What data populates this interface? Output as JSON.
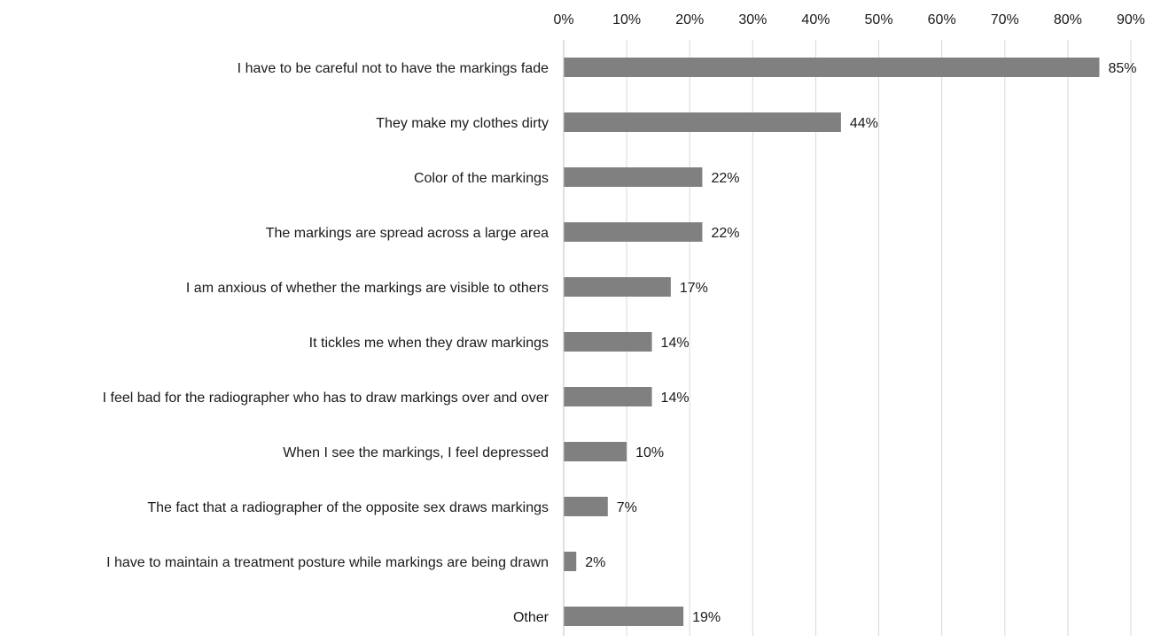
{
  "chart_data": {
    "type": "bar",
    "orientation": "horizontal",
    "categories": [
      "I have to be careful not to have the markings fade",
      "They make my clothes dirty",
      "Color of the markings ",
      "The markings are spread across a large area",
      "I am anxious of whether the markings are visible to others",
      "It tickles me when they draw markings",
      "I feel bad for the radiographer who has to draw markings over and over",
      "When I see the markings, I feel depressed",
      "The fact that a radiographer of the opposite sex draws markings",
      "I have to maintain a treatment posture while markings are being drawn",
      "Other"
    ],
    "values": [
      85,
      44,
      22,
      22,
      17,
      14,
      14,
      10,
      7,
      2,
      19
    ],
    "data_labels": [
      "85%",
      "44%",
      "22%",
      "22%",
      "17%",
      "14%",
      "14%",
      "10%",
      "7%",
      "2%",
      "19%"
    ],
    "x_ticks": [
      0,
      10,
      20,
      30,
      40,
      50,
      60,
      70,
      80,
      90
    ],
    "x_tick_labels": [
      "0%",
      "10%",
      "20%",
      "30%",
      "40%",
      "50%",
      "60%",
      "70%",
      "80%",
      "90%"
    ],
    "xlim": [
      0,
      90
    ],
    "x_axis_position": "top",
    "grid": "vertical",
    "legend": "none",
    "title": "",
    "xlabel": "",
    "ylabel": "",
    "colors": {
      "bar": "#808080",
      "grid": "#d9d9d9",
      "axis": "#bfbfbf",
      "text": "#1a1a1a"
    }
  }
}
